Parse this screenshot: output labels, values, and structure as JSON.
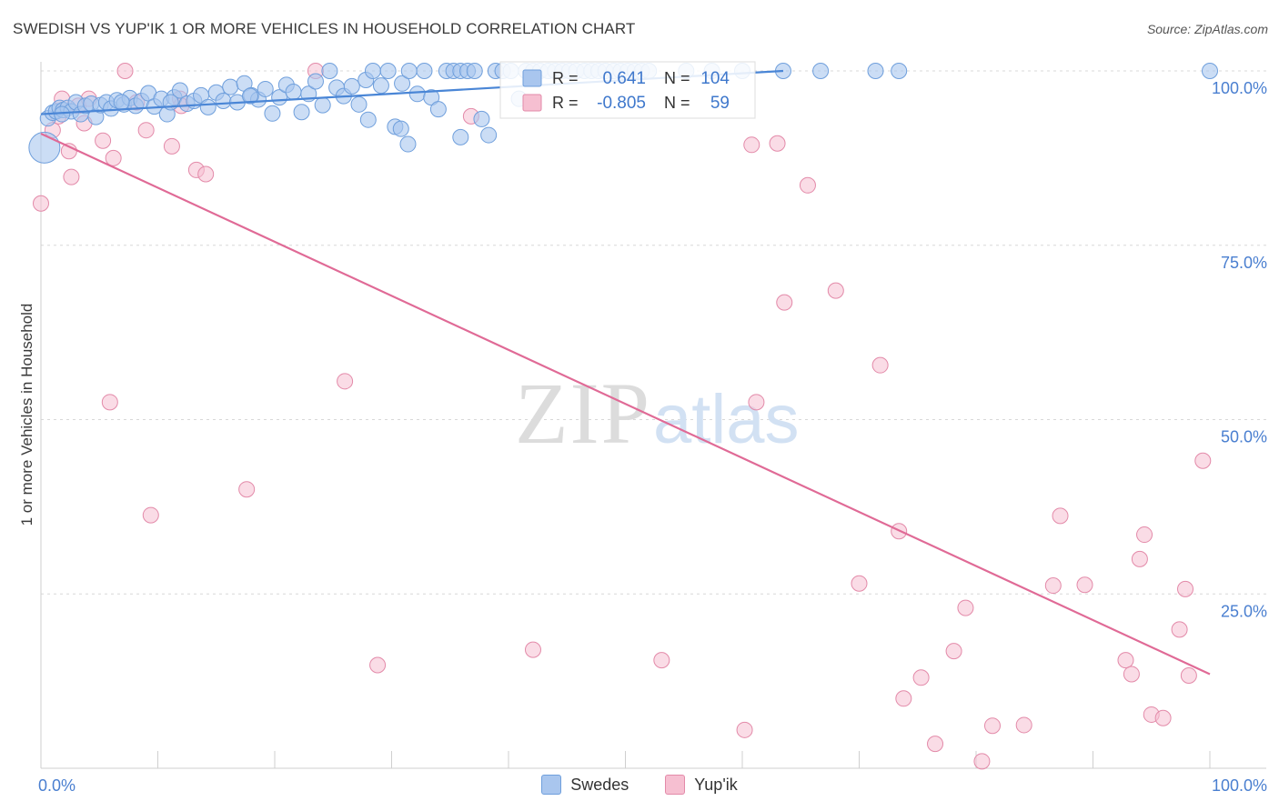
{
  "header": {
    "title": "SWEDISH VS YUP'IK 1 OR MORE VEHICLES IN HOUSEHOLD CORRELATION CHART",
    "source": "Source: ZipAtlas.com"
  },
  "watermark": {
    "zip": "ZIP",
    "atlas": "atlas"
  },
  "colors": {
    "blue": "#4a86d6",
    "blue_fill": "#a9c6ee",
    "pink": "#e06a96",
    "pink_fill": "#f6bfd1",
    "axis_label": "#4a7fd0",
    "grid": "#d8d8d8"
  },
  "stats": {
    "swedes": {
      "r_label": "R =",
      "r_value": "0.641",
      "n_label": "N =",
      "n_value": "104"
    },
    "yupik": {
      "r_label": "R =",
      "r_value": "-0.805",
      "n_label": "N =",
      "n_value": "59"
    }
  },
  "legend": {
    "swedes": "Swedes",
    "yupik": "Yup'ik"
  },
  "chart_data": {
    "type": "scatter",
    "title": "SWEDISH VS YUP'IK 1 OR MORE VEHICLES IN HOUSEHOLD CORRELATION CHART",
    "xlabel": "",
    "ylabel": "1 or more Vehicles in Household",
    "xlim": [
      0,
      100
    ],
    "ylim": [
      0,
      100
    ],
    "x_tick_labels": [
      "0.0%",
      "100.0%"
    ],
    "y_tick_values": [
      25,
      50,
      75,
      100
    ],
    "y_tick_labels": [
      "25.0%",
      "50.0%",
      "75.0%",
      "100.0%"
    ],
    "grid": true,
    "series": [
      {
        "name": "Swedes",
        "points": [
          [
            0.3,
            89.0
          ],
          [
            0.6,
            93.2
          ],
          [
            1.0,
            94.0
          ],
          [
            1.3,
            94.2
          ],
          [
            1.6,
            94.7
          ],
          [
            1.9,
            94.4
          ],
          [
            2.3,
            94.7
          ],
          [
            2.6,
            94.2
          ],
          [
            3.0,
            95.5
          ],
          [
            3.4,
            93.8
          ],
          [
            3.8,
            95.0
          ],
          [
            4.3,
            95.3
          ],
          [
            4.7,
            93.4
          ],
          [
            5.1,
            95.1
          ],
          [
            5.6,
            95.5
          ],
          [
            6.0,
            94.6
          ],
          [
            6.5,
            95.8
          ],
          [
            7.1,
            95.2
          ],
          [
            7.6,
            96.1
          ],
          [
            8.1,
            95.0
          ],
          [
            8.6,
            95.7
          ],
          [
            9.2,
            96.8
          ],
          [
            9.7,
            94.9
          ],
          [
            10.3,
            96.0
          ],
          [
            10.8,
            93.8
          ],
          [
            11.4,
            96.2
          ],
          [
            11.9,
            97.2
          ],
          [
            12.5,
            95.3
          ],
          [
            13.1,
            95.7
          ],
          [
            13.7,
            96.5
          ],
          [
            14.3,
            94.8
          ],
          [
            15.0,
            96.9
          ],
          [
            15.6,
            95.7
          ],
          [
            16.2,
            97.7
          ],
          [
            16.8,
            95.5
          ],
          [
            17.4,
            98.2
          ],
          [
            18.0,
            96.5
          ],
          [
            18.6,
            95.9
          ],
          [
            19.2,
            97.4
          ],
          [
            19.8,
            93.9
          ],
          [
            20.4,
            96.2
          ],
          [
            21.0,
            98.0
          ],
          [
            21.6,
            97.0
          ],
          [
            22.3,
            94.1
          ],
          [
            22.9,
            96.7
          ],
          [
            23.5,
            98.5
          ],
          [
            24.1,
            95.1
          ],
          [
            24.7,
            100.0
          ],
          [
            25.3,
            97.6
          ],
          [
            25.9,
            96.4
          ],
          [
            26.6,
            97.8
          ],
          [
            27.2,
            95.2
          ],
          [
            27.8,
            98.7
          ],
          [
            28.4,
            100.0
          ],
          [
            29.1,
            97.9
          ],
          [
            29.7,
            100.0
          ],
          [
            30.3,
            92.0
          ],
          [
            30.9,
            98.2
          ],
          [
            31.5,
            100.0
          ],
          [
            32.2,
            96.7
          ],
          [
            32.8,
            100.0
          ],
          [
            33.4,
            96.2
          ],
          [
            34.0,
            94.5
          ],
          [
            34.7,
            100.0
          ],
          [
            35.3,
            100.0
          ],
          [
            35.9,
            100.0
          ],
          [
            36.5,
            100.0
          ],
          [
            37.1,
            100.0
          ],
          [
            37.7,
            93.1
          ],
          [
            38.3,
            90.8
          ],
          [
            38.9,
            100.0
          ],
          [
            39.5,
            100.0
          ],
          [
            40.2,
            100.0
          ],
          [
            40.9,
            96.0
          ],
          [
            41.5,
            100.0
          ],
          [
            42.1,
            100.0
          ],
          [
            42.7,
            100.0
          ],
          [
            43.4,
            100.0
          ],
          [
            44.0,
            100.0
          ],
          [
            44.6,
            100.0
          ],
          [
            45.2,
            100.0
          ],
          [
            45.8,
            100.0
          ],
          [
            46.5,
            100.0
          ],
          [
            47.1,
            100.0
          ],
          [
            47.7,
            100.0
          ],
          [
            48.3,
            100.0
          ],
          [
            49.0,
            100.0
          ],
          [
            49.6,
            100.0
          ],
          [
            50.2,
            100.0
          ],
          [
            50.8,
            100.0
          ],
          [
            51.4,
            100.0
          ],
          [
            52.0,
            100.0
          ],
          [
            55.2,
            100.0
          ],
          [
            57.4,
            100.0
          ],
          [
            60.0,
            100.0
          ],
          [
            63.5,
            100.0
          ],
          [
            66.7,
            100.0
          ],
          [
            71.4,
            100.0
          ],
          [
            73.4,
            100.0
          ],
          [
            100.0,
            100.0
          ],
          [
            1.8,
            93.8
          ],
          [
            6.9,
            95.5
          ],
          [
            11.1,
            95.5
          ],
          [
            17.9,
            96.4
          ],
          [
            30.8,
            91.7
          ],
          [
            31.4,
            89.5
          ],
          [
            35.9,
            90.5
          ],
          [
            28.0,
            93.0
          ]
        ],
        "trend": [
          [
            0.0,
            93.8
          ],
          [
            63.5,
            100.0
          ]
        ]
      },
      {
        "name": "Yup'ik",
        "points": [
          [
            0.0,
            81.0
          ],
          [
            1.5,
            93.5
          ],
          [
            1.8,
            96.0
          ],
          [
            2.4,
            88.5
          ],
          [
            2.6,
            84.8
          ],
          [
            3.2,
            95.0
          ],
          [
            3.7,
            92.5
          ],
          [
            4.1,
            96.0
          ],
          [
            5.3,
            90.0
          ],
          [
            6.2,
            87.5
          ],
          [
            7.2,
            100.0
          ],
          [
            8.2,
            95.5
          ],
          [
            9.0,
            91.5
          ],
          [
            9.4,
            36.3
          ],
          [
            11.2,
            89.2
          ],
          [
            11.9,
            96.0
          ],
          [
            12.0,
            95.0
          ],
          [
            13.3,
            85.8
          ],
          [
            14.1,
            85.2
          ],
          [
            17.6,
            40.0
          ],
          [
            23.5,
            100.0
          ],
          [
            26.0,
            55.5
          ],
          [
            28.8,
            14.8
          ],
          [
            36.8,
            93.5
          ],
          [
            42.1,
            17.0
          ],
          [
            53.1,
            15.5
          ],
          [
            60.2,
            5.5
          ],
          [
            60.8,
            89.4
          ],
          [
            61.2,
            52.5
          ],
          [
            63.0,
            89.6
          ],
          [
            63.6,
            66.8
          ],
          [
            65.6,
            83.6
          ],
          [
            68.0,
            68.5
          ],
          [
            70.0,
            26.5
          ],
          [
            71.8,
            57.8
          ],
          [
            73.4,
            34.0
          ],
          [
            73.8,
            10.0
          ],
          [
            75.3,
            13.0
          ],
          [
            76.5,
            3.5
          ],
          [
            78.1,
            16.8
          ],
          [
            79.1,
            23.0
          ],
          [
            80.5,
            1.0
          ],
          [
            81.4,
            6.1
          ],
          [
            84.1,
            6.2
          ],
          [
            86.6,
            26.2
          ],
          [
            87.2,
            36.2
          ],
          [
            89.3,
            26.3
          ],
          [
            92.8,
            15.5
          ],
          [
            93.3,
            13.5
          ],
          [
            94.0,
            30.0
          ],
          [
            94.4,
            33.5
          ],
          [
            95.0,
            7.7
          ],
          [
            96.0,
            7.2
          ],
          [
            97.4,
            19.9
          ],
          [
            97.9,
            25.7
          ],
          [
            98.2,
            13.3
          ],
          [
            99.4,
            44.1
          ],
          [
            5.9,
            52.5
          ],
          [
            1.0,
            91.5
          ]
        ],
        "trend": [
          [
            0.0,
            91.0
          ],
          [
            100.0,
            13.5
          ]
        ]
      }
    ],
    "watermark": "ZIPatlas"
  }
}
